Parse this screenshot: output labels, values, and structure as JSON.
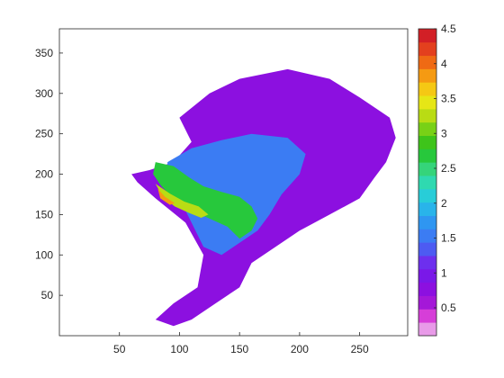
{
  "chart_data": {
    "type": "heatmap",
    "title": "",
    "xlabel": "",
    "ylabel": "",
    "xlim": [
      0,
      290
    ],
    "ylim": [
      0,
      380
    ],
    "x_ticks": [
      50,
      100,
      150,
      200,
      250
    ],
    "y_ticks": [
      50,
      100,
      150,
      200,
      250,
      300,
      350
    ],
    "grid": false,
    "colorbar": {
      "placement": "right",
      "min": 0.1,
      "max": 4.5,
      "ticks": [
        0.5,
        1,
        1.5,
        2,
        2.5,
        3,
        3.5,
        4,
        4.5
      ],
      "tick_labels": [
        "0.5",
        "1",
        "1.5",
        "2",
        "2.5",
        "3",
        "3.5",
        "4",
        "4.5"
      ],
      "colors": [
        "#e89ae8",
        "#d63ed8",
        "#a418d8",
        "#8c10e0",
        "#7a18e8",
        "#6d2fee",
        "#4d5bf2",
        "#3b7cf3",
        "#2f96f1",
        "#29b4ea",
        "#28cdd8",
        "#2fd9b0",
        "#35d47a",
        "#27c83c",
        "#3ec41a",
        "#78d116",
        "#b9dc14",
        "#e6e616",
        "#f5c814",
        "#f59a12",
        "#ef6a14",
        "#e3401e",
        "#d21f26"
      ]
    },
    "regions_note": "",
    "regions": [
      {
        "value": 0.8,
        "polygon": [
          [
            60,
            200
          ],
          [
            75,
            205
          ],
          [
            95,
            215
          ],
          [
            110,
            240
          ],
          [
            100,
            270
          ],
          [
            125,
            300
          ],
          [
            150,
            318
          ],
          [
            190,
            330
          ],
          [
            225,
            318
          ],
          [
            250,
            295
          ],
          [
            275,
            270
          ],
          [
            280,
            245
          ],
          [
            272,
            215
          ],
          [
            262,
            195
          ],
          [
            250,
            170
          ],
          [
            225,
            150
          ],
          [
            200,
            130
          ],
          [
            180,
            110
          ],
          [
            160,
            90
          ],
          [
            150,
            60
          ],
          [
            130,
            40
          ],
          [
            110,
            20
          ],
          [
            95,
            12
          ],
          [
            80,
            20
          ],
          [
            95,
            40
          ],
          [
            115,
            60
          ],
          [
            120,
            100
          ],
          [
            105,
            140
          ],
          [
            80,
            170
          ],
          [
            65,
            190
          ]
        ]
      },
      {
        "value": 1.6,
        "polygon": [
          [
            90,
            215
          ],
          [
            110,
            232
          ],
          [
            135,
            242
          ],
          [
            160,
            250
          ],
          [
            190,
            245
          ],
          [
            205,
            225
          ],
          [
            200,
            200
          ],
          [
            185,
            175
          ],
          [
            175,
            150
          ],
          [
            165,
            130
          ],
          [
            150,
            115
          ],
          [
            135,
            100
          ],
          [
            120,
            110
          ],
          [
            110,
            140
          ],
          [
            100,
            170
          ],
          [
            90,
            195
          ]
        ]
      },
      {
        "value": 2.6,
        "polygon": [
          [
            80,
            215
          ],
          [
            95,
            210
          ],
          [
            108,
            196
          ],
          [
            120,
            185
          ],
          [
            135,
            178
          ],
          [
            150,
            172
          ],
          [
            160,
            160
          ],
          [
            165,
            145
          ],
          [
            160,
            130
          ],
          [
            150,
            120
          ],
          [
            140,
            135
          ],
          [
            125,
            145
          ],
          [
            110,
            155
          ],
          [
            95,
            170
          ],
          [
            85,
            185
          ],
          [
            78,
            200
          ]
        ]
      },
      {
        "value": 3.2,
        "polygon": [
          [
            80,
            188
          ],
          [
            92,
            176
          ],
          [
            104,
            166
          ],
          [
            116,
            160
          ],
          [
            124,
            150
          ],
          [
            118,
            146
          ],
          [
            108,
            152
          ],
          [
            96,
            160
          ],
          [
            86,
            172
          ]
        ]
      },
      {
        "value": 3.8,
        "polygon": [
          [
            82,
            182
          ],
          [
            88,
            172
          ],
          [
            96,
            164
          ],
          [
            92,
            162
          ],
          [
            84,
            170
          ]
        ]
      }
    ]
  }
}
